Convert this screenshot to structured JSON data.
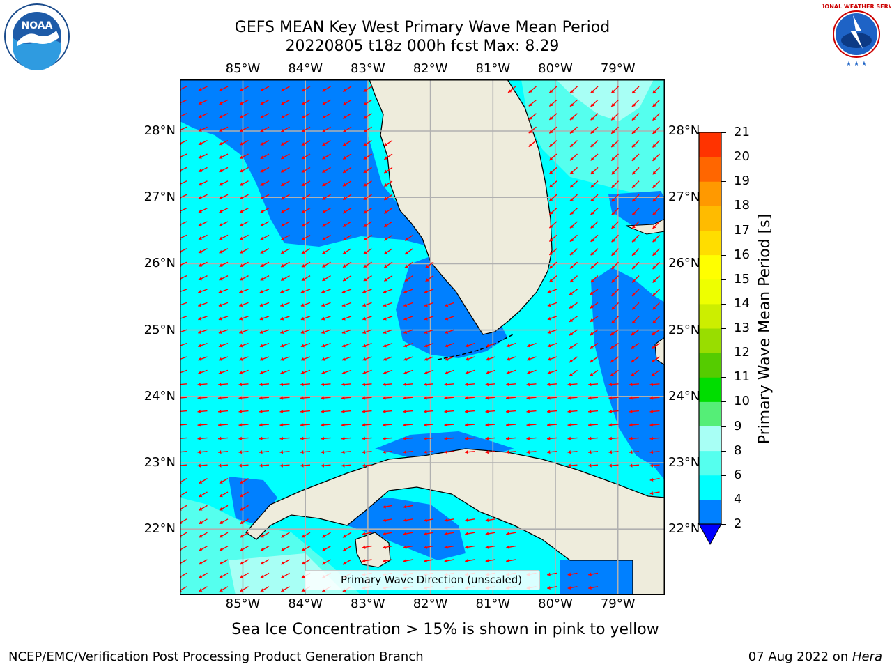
{
  "title": {
    "line1": "GEFS MEAN Key West Primary Wave Mean Period",
    "line2": "20220805 t18z 000h fcst   Max: 8.29"
  },
  "map": {
    "lon_labels": [
      "85°W",
      "84°W",
      "83°W",
      "82°W",
      "81°W",
      "80°W",
      "79°W"
    ],
    "lat_labels": [
      "28°N",
      "27°N",
      "26°N",
      "25°N",
      "24°N",
      "23°N",
      "22°N"
    ],
    "legend_label": "Primary Wave Direction (unscaled)",
    "colors": {
      "land": "#eeecdc",
      "period_2_4": "#0080ff",
      "period_4_6": "#00ffff",
      "period_6_8": "#55ffee",
      "period_8_9": "#a8fff5",
      "arrow": "#ff0000",
      "grid": "#b0b0b0"
    }
  },
  "colorbar": {
    "label": "Primary Wave Mean Period [s]",
    "ticks": [
      "2",
      "4",
      "6",
      "8",
      "9",
      "10",
      "11",
      "12",
      "13",
      "14",
      "15",
      "16",
      "17",
      "18",
      "19",
      "20",
      "21"
    ],
    "colors": [
      "#0080ff",
      "#00ffff",
      "#55ffee",
      "#a8fff5",
      "#55ee77",
      "#00dd00",
      "#55cc00",
      "#99dd00",
      "#ccee00",
      "#eeff00",
      "#ffff00",
      "#ffdd00",
      "#ffbb00",
      "#ff9900",
      "#ff6600",
      "#ff3300"
    ],
    "under_color": "#0000ff"
  },
  "footer": {
    "sea_ice_note": "Sea Ice Concentration > 15% is shown in pink to yellow",
    "credit_left": "NCEP/EMC/Verification Post Processing Product Generation Branch",
    "credit_date": "07 Aug 2022 on ",
    "credit_machine": "Hera"
  },
  "logos": {
    "noaa_text": "NOAA",
    "nws_text": "NATIONAL WEATHER SERVICE"
  }
}
